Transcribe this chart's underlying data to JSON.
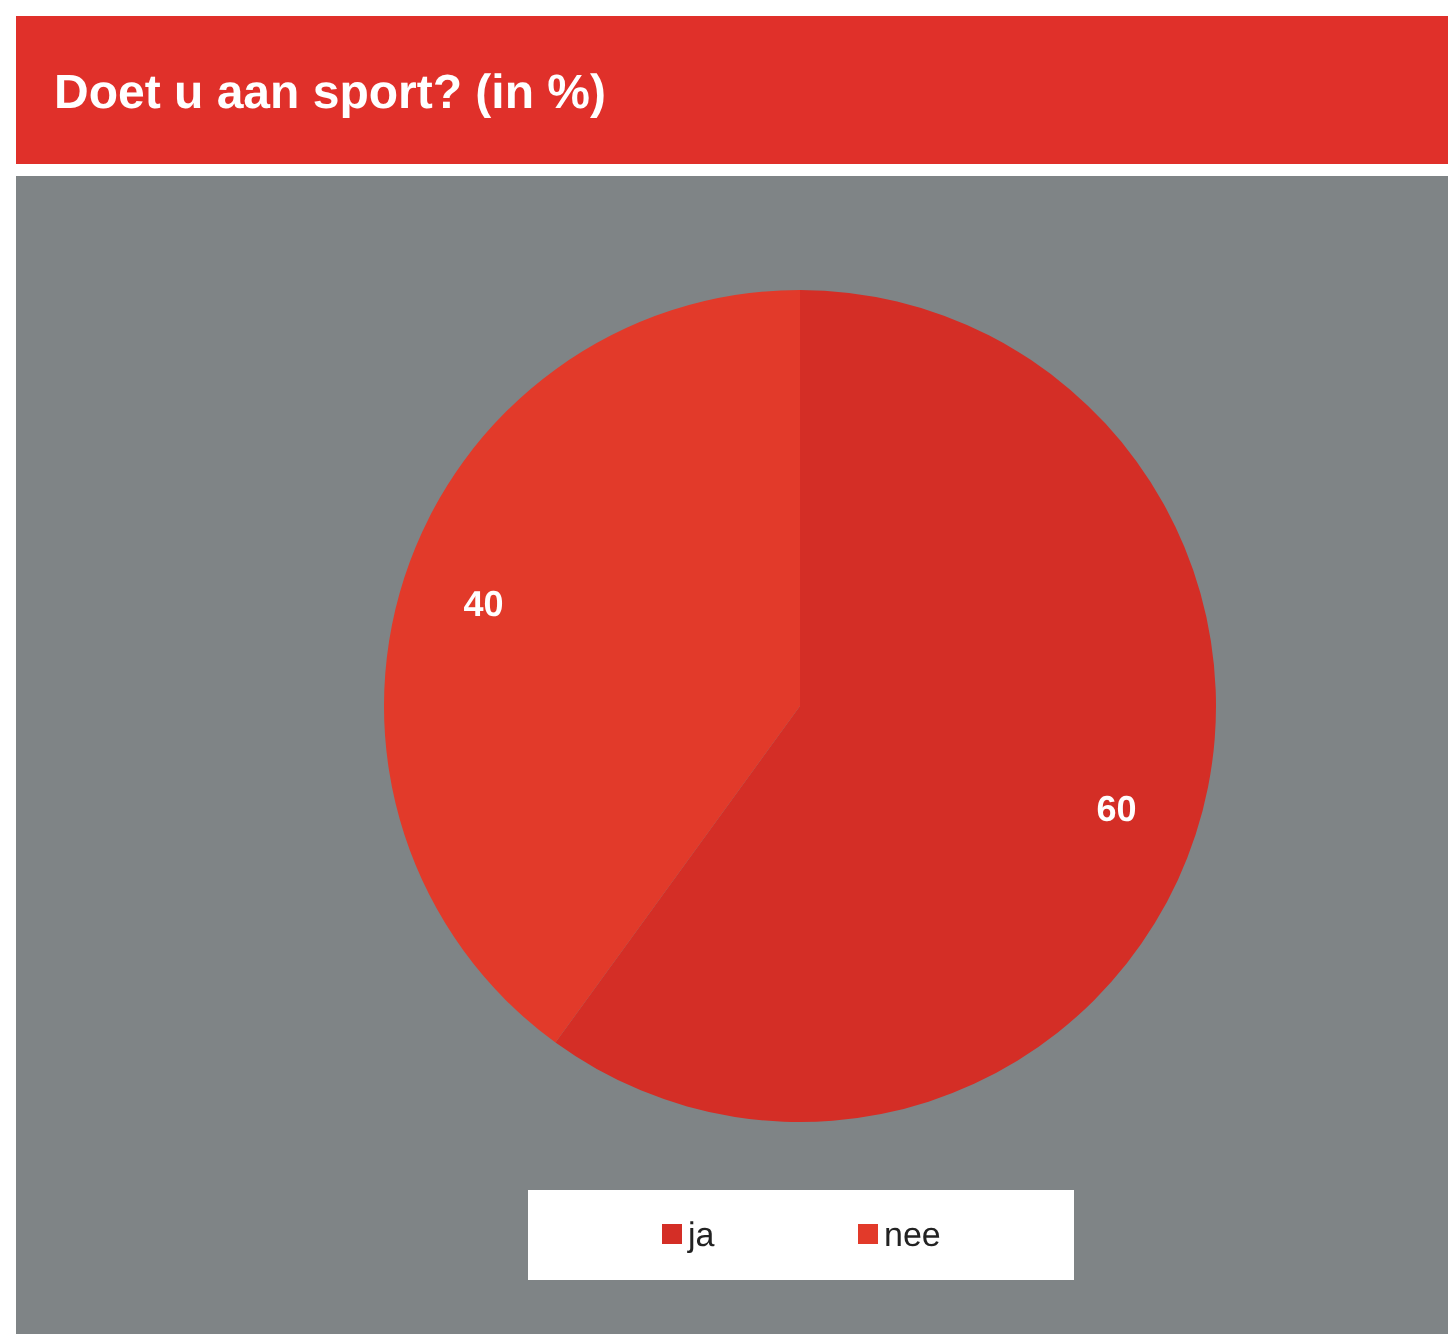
{
  "chart_data": {
    "type": "pie",
    "title": "Doet u aan sport?  (in %)",
    "categories": [
      "ja",
      "nee"
    ],
    "values": [
      60,
      40
    ],
    "colors": [
      "#d42e26",
      "#e23a2a"
    ],
    "data_labels": true,
    "legend": "bottom"
  }
}
